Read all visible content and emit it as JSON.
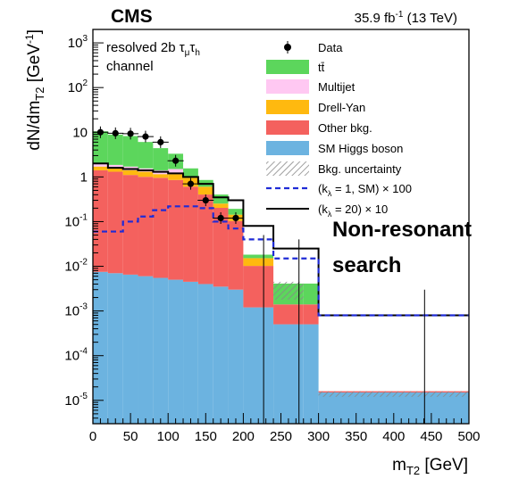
{
  "chart_data": {
    "type": "histogram",
    "experiment": "CMS",
    "luminosity": "35.9 fb",
    "luminosity_sup": "-1",
    "energy": "(13 TeV)",
    "annotation_line1": "resolved 2b τ",
    "annotation_sub1": "μ",
    "annotation_tau2": "τ",
    "annotation_sub2": "h",
    "annotation_line2": "channel",
    "side_label_line1": "Non-resonant",
    "side_label_line2": "search",
    "xlabel": "m",
    "xlabel_sub": "T2",
    "xlabel_unit": " [GeV]",
    "ylabel": "dN/dm",
    "ylabel_sub": "T2",
    "ylabel_unit_open": " [GeV",
    "ylabel_unit_sup": "-1",
    "ylabel_unit_close": "]",
    "xlim": [
      0,
      500
    ],
    "ylim": [
      3e-06,
      2000
    ],
    "yscale": "log",
    "xticks": [
      "0",
      "50",
      "100",
      "150",
      "200",
      "250",
      "300",
      "350",
      "400",
      "450",
      "500"
    ],
    "yticks": [
      {
        "base": "10",
        "exp": "-5",
        "value": 1e-05
      },
      {
        "base": "10",
        "exp": "-4",
        "value": 0.0001
      },
      {
        "base": "10",
        "exp": "-3",
        "value": 0.001
      },
      {
        "base": "10",
        "exp": "-2",
        "value": 0.01
      },
      {
        "base": "10",
        "exp": "-1",
        "value": 0.1
      },
      {
        "base": "1",
        "exp": "",
        "value": 1
      },
      {
        "base": "10",
        "exp": "",
        "value": 10
      },
      {
        "base": "10",
        "exp": "2",
        "value": 100
      },
      {
        "base": "10",
        "exp": "3",
        "value": 1000
      }
    ],
    "bin_edges": [
      0,
      20,
      40,
      60,
      80,
      100,
      120,
      140,
      160,
      180,
      200,
      240,
      280,
      300,
      500
    ],
    "stack": [
      {
        "name": "SM Higgs boson",
        "color": "#6cb3e0",
        "values": [
          0.0075,
          0.007,
          0.0065,
          0.006,
          0.0055,
          0.005,
          0.0045,
          0.004,
          0.0035,
          0.003,
          0.0012,
          0.0005,
          0.0005,
          1.2e-05
        ]
      },
      {
        "name": "Other bkg.",
        "color": "#f4615e",
        "values": [
          1.4,
          1.3,
          1.1,
          1.0,
          0.95,
          0.85,
          0.6,
          0.4,
          0.2,
          0.1,
          0.009,
          0.0009,
          0.0009,
          1e-06
        ]
      },
      {
        "name": "Drell-Yan",
        "color": "#ffb90f",
        "values": [
          0.3,
          0.35,
          0.3,
          0.3,
          0.2,
          0.3,
          0.35,
          0.2,
          0.05,
          0.04,
          0.005,
          0.0,
          0.0,
          0.0
        ]
      },
      {
        "name": "Multijet",
        "color": "#ffc8f2",
        "values": [
          0.3,
          0.2,
          0.3,
          0.25,
          0.25,
          0.35,
          0.0,
          0.0,
          0.0,
          0.0,
          0.0,
          0.0,
          0.0,
          0.0
        ]
      },
      {
        "name": "tt̄",
        "color": "#5cd65c",
        "values": [
          8.5,
          7.0,
          6.5,
          4.5,
          3.0,
          1.8,
          0.6,
          0.25,
          0.15,
          0.05,
          0.003,
          0.0027,
          0.0027,
          0.0
        ]
      }
    ],
    "data_points": {
      "name": "Data",
      "x": [
        10,
        30,
        50,
        70,
        90,
        110,
        130,
        150,
        170,
        190
      ],
      "y": [
        10,
        9.5,
        9.3,
        8,
        6,
        2.3,
        0.7,
        0.3,
        0.12,
        0.12
      ]
    },
    "bkg_uncertainty": {
      "name": "Bkg. uncertainty",
      "bins": [
        {
          "x0": 240,
          "x1": 280,
          "y0": 0.0018,
          "y1": 0.0045
        },
        {
          "x0": 300,
          "x1": 500,
          "y0": 1.2e-05,
          "y1": 1.6e-05
        }
      ]
    },
    "signal_sm": {
      "name": "(k",
      "name_sub": "λ",
      "name_rest": " = 1, SM) × 100",
      "values": [
        0.06,
        0.06,
        0.1,
        0.13,
        0.18,
        0.22,
        0.22,
        0.2,
        0.1,
        0.07,
        0.04,
        0.015,
        0.015,
        0.0008
      ]
    },
    "signal_k20": {
      "name": "(k",
      "name_sub": "λ",
      "name_rest": " = 20) × 10",
      "values": [
        2.0,
        1.6,
        1.5,
        1.4,
        1.3,
        1.2,
        1.0,
        0.7,
        0.35,
        0.3,
        0.08,
        0.025,
        0.025,
        0.0008
      ]
    },
    "legend": [
      {
        "key": "data",
        "label": "Data"
      },
      {
        "key": "tt",
        "label": "tt̄"
      },
      {
        "key": "multijet",
        "label": "Multijet"
      },
      {
        "key": "dy",
        "label": "Drell-Yan"
      },
      {
        "key": "other",
        "label": "Other bkg."
      },
      {
        "key": "higgs",
        "label": "SM Higgs boson"
      },
      {
        "key": "unc",
        "label": "Bkg. uncertainty"
      }
    ],
    "legend_placement": "top-right",
    "grid": false
  }
}
